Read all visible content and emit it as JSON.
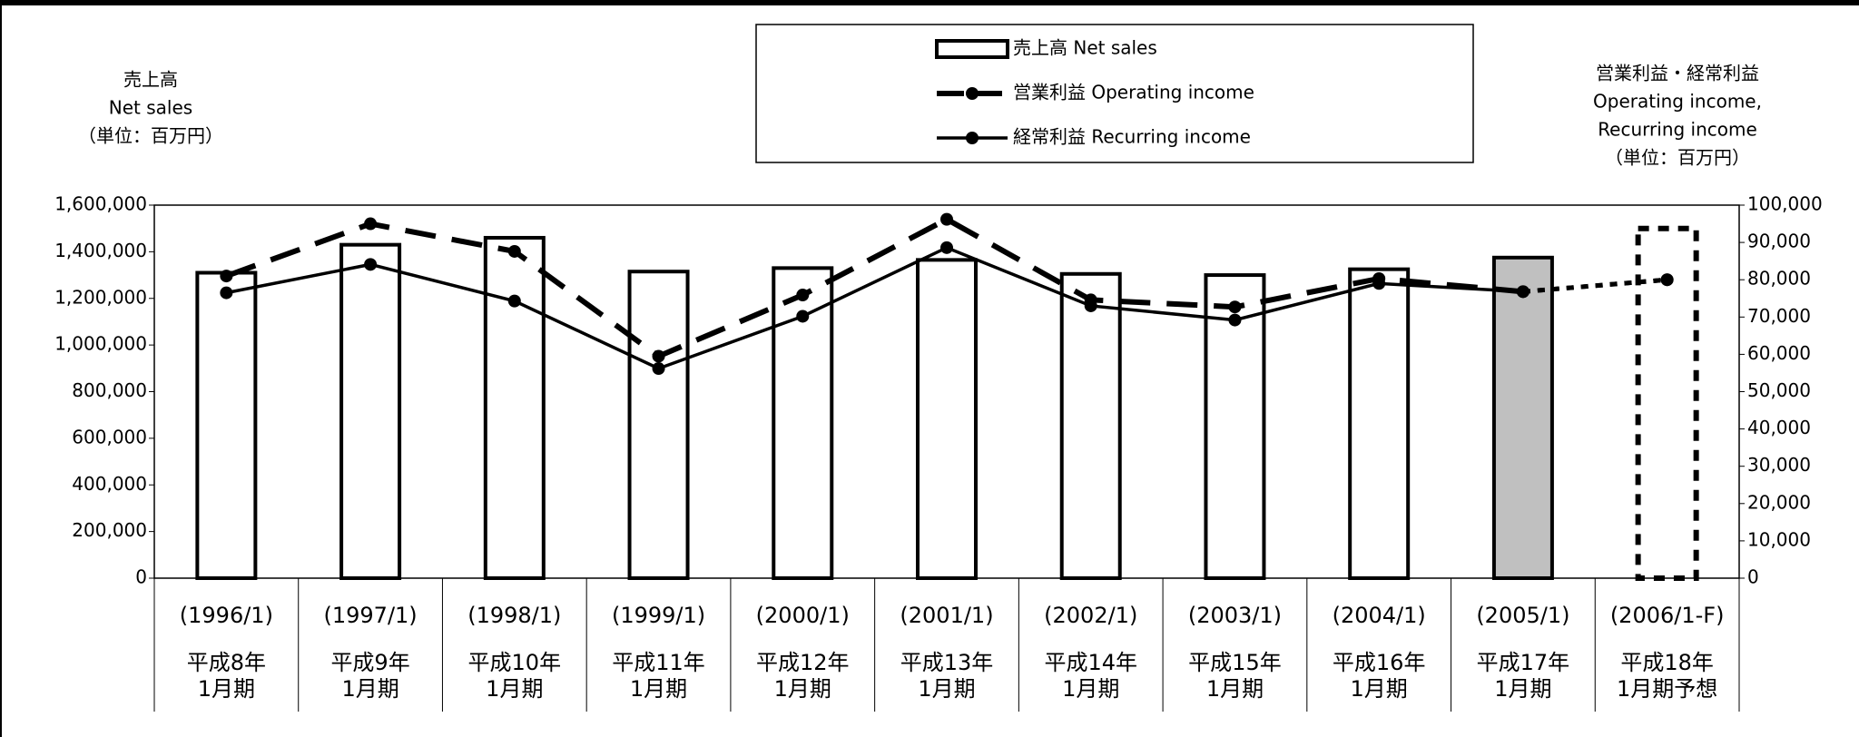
{
  "chart_data": {
    "type": "bar_line",
    "categories": [
      "(1996/1)",
      "(1997/1)",
      "(1998/1)",
      "(1999/1)",
      "(2000/1)",
      "(2001/1)",
      "(2002/1)",
      "(2003/1)",
      "(2004/1)",
      "(2005/1)",
      "(2006/1-F)"
    ],
    "period_labels": [
      [
        "平成8年",
        "1月期"
      ],
      [
        "平成9年",
        "1月期"
      ],
      [
        "平成10年",
        "1月期"
      ],
      [
        "平成11年",
        "1月期"
      ],
      [
        "平成12年",
        "1月期"
      ],
      [
        "平成13年",
        "1月期"
      ],
      [
        "平成14年",
        "1月期"
      ],
      [
        "平成15年",
        "1月期"
      ],
      [
        "平成16年",
        "1月期"
      ],
      [
        "平成17年",
        "1月期"
      ],
      [
        "平成18年",
        "1月期予想"
      ]
    ],
    "y_axis_title": [
      "売上高",
      "Net sales",
      "（単位：百万円）"
    ],
    "y2_axis_title": [
      "営業利益・経常利益",
      "Operating income,",
      "Recurring income",
      "（単位：百万円）"
    ],
    "forecast_from": 10,
    "series": [
      {
        "name": "売上高 Net sales",
        "type": "bar",
        "axis": "y",
        "color": "#000000",
        "colors": [
          "#ffffff",
          "#ffffff",
          "#ffffff",
          "#ffffff",
          "#ffffff",
          "#ffffff",
          "#ffffff",
          "#ffffff",
          "#ffffff",
          "#c0c0c0",
          "none"
        ],
        "values": [
          1310000,
          1430000,
          1460000,
          1315000,
          1330000,
          1365000,
          1305000,
          1300000,
          1325000,
          1375000,
          1500000
        ]
      },
      {
        "name": "営業利益 Operating income",
        "type": "line",
        "style": "dashed",
        "axis": "y2",
        "color": "#000000",
        "values": [
          81000,
          95000,
          87600,
          59500,
          75900,
          96200,
          74600,
          72700,
          80300,
          76800,
          80000
        ]
      },
      {
        "name": "経常利益 Recurring income",
        "type": "line",
        "style": "solid",
        "axis": "y2",
        "color": "#000000",
        "values": [
          76500,
          84100,
          74300,
          56200,
          70200,
          88600,
          73000,
          69200,
          79000,
          76800,
          80000
        ]
      }
    ],
    "ylim": [
      0,
      1600000
    ],
    "yticks": [
      0,
      {
        "value": 200000,
        "label": "200,000"
      },
      {
        "value": 400000,
        "label": "400,000"
      },
      {
        "value": 600000,
        "label": "600,000"
      },
      {
        "value": 800000,
        "label": "800,000"
      },
      {
        "value": 1000000,
        "label": "1,000,000"
      },
      {
        "value": 1200000,
        "label": "1,200,000"
      },
      {
        "value": 1400000,
        "label": "1,400,000"
      },
      {
        "value": 1600000,
        "label": "1,600,000"
      }
    ],
    "y2lim": [
      0,
      100000
    ],
    "y2ticks": [
      0,
      {
        "value": 10000,
        "label": "10,000"
      },
      {
        "value": 20000,
        "label": "20,000"
      },
      {
        "value": 30000,
        "label": "30,000"
      },
      {
        "value": 40000,
        "label": "40,000"
      },
      {
        "value": 50000,
        "label": "50,000"
      },
      {
        "value": 60000,
        "label": "60,000"
      },
      {
        "value": 70000,
        "label": "70,000"
      },
      {
        "value": 80000,
        "label": "80,000"
      },
      {
        "value": 90000,
        "label": "90,000"
      },
      {
        "value": 100000,
        "label": "100,000"
      }
    ]
  }
}
